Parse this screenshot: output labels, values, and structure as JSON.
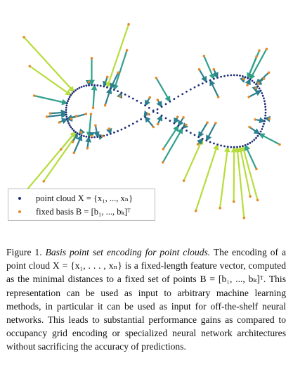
{
  "figure": {
    "colors": {
      "point_cloud": "#1f2d7a",
      "basis": "#e58a2a",
      "arrow_far": "#2b7f8e",
      "arrow_mid": "#31a08a",
      "arrow_near": "#b6dd3c"
    }
  },
  "legend": {
    "point_cloud_label": "point cloud X = {x₁, ..., xₙ}",
    "basis_label": "fixed basis B = [b₁, ..., bₖ]ᵀ"
  },
  "caption": {
    "label": "Figure 1.",
    "title": "Basis point set encoding for point clouds.",
    "body": "The encoding of a point cloud X = {x₁, . . . , xₙ} is a fixed-length feature vector, computed as the minimal distances to a fixed set of points B = [b₁, ..., bₖ]ᵀ. This representation can be used as input to arbitrary machine learning methods, in particular it can be used as input for off-the-shelf neural networks. This leads to substantial performance gains as compared to occupancy grid encoding or specialized neural network architectures without sacrificing the accuracy of predictions."
  }
}
